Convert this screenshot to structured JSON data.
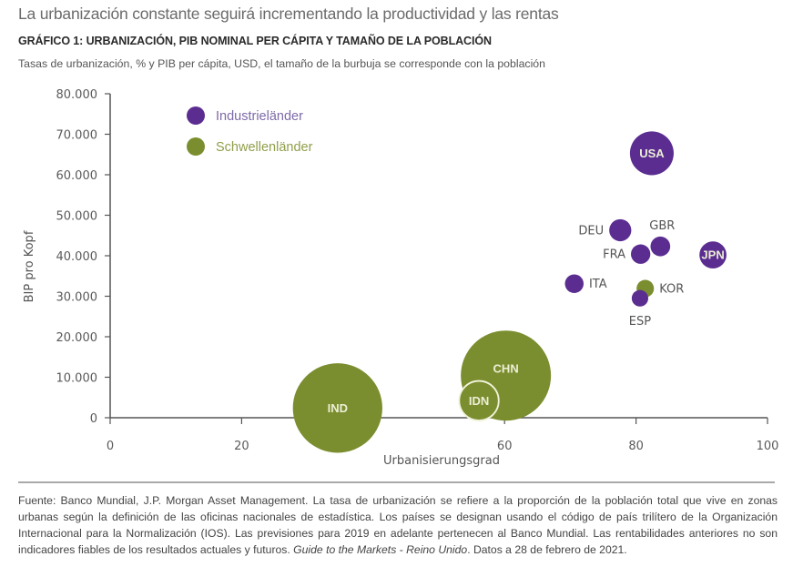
{
  "header": {
    "headline": "La urbanización constante seguirá incrementando la productividad y las rentas",
    "subhead": "GRÁFICO 1: URBANIZACIÓN, PIB NOMINAL PER CÁPITA Y TAMAÑO DE LA POBLACIÓN",
    "caption": "Tasas de urbanización, % y PIB per cápita, USD, el tamaño de la burbuja se corresponde con la población"
  },
  "colors": {
    "industrial": "#5b2d91",
    "emerging": "#7b8e2f",
    "industrial_legend_text": "#7d6aa8",
    "emerging_legend_text": "#8f9f4a",
    "bubble_text": "#ecefd6"
  },
  "chart_data": {
    "type": "scatter",
    "subtype": "bubble",
    "title": "",
    "xlabel": "Urbanisierungsgrad",
    "ylabel": "BIP pro Kopf",
    "xlim": [
      0,
      100
    ],
    "ylim": [
      0,
      80000
    ],
    "x_ticks": [
      0,
      20,
      40,
      60,
      80,
      100
    ],
    "x_tick_labels": [
      "0",
      "20",
      "",
      "60",
      "80",
      "100"
    ],
    "y_ticks": [
      0,
      10000,
      20000,
      30000,
      40000,
      50000,
      60000,
      70000,
      80000
    ],
    "y_tick_labels": [
      "0",
      "10.000",
      "20.000",
      "30.000",
      "40.000",
      "50.000",
      "60.000",
      "70.000",
      "80.000"
    ],
    "grid": false,
    "legend_position": "top-left",
    "legend": [
      {
        "name": "Industrieländer",
        "group": "industrial"
      },
      {
        "name": "Schwellenländer",
        "group": "emerging"
      }
    ],
    "size_variable": "population (millions, approx.)",
    "points": [
      {
        "label": "USA",
        "group": "industrial",
        "x": 82.4,
        "y": 65300,
        "size": 330,
        "label_pos": "inside"
      },
      {
        "label": "DEU",
        "group": "industrial",
        "x": 77.6,
        "y": 46300,
        "size": 84,
        "label_pos": "left"
      },
      {
        "label": "GBR",
        "group": "industrial",
        "x": 83.7,
        "y": 42300,
        "size": 67,
        "label_pos": "top"
      },
      {
        "label": "FRA",
        "group": "industrial",
        "x": 80.7,
        "y": 40400,
        "size": 65,
        "label_pos": "left"
      },
      {
        "label": "JPN",
        "group": "industrial",
        "x": 91.7,
        "y": 40200,
        "size": 126,
        "label_pos": "inside"
      },
      {
        "label": "ITA",
        "group": "industrial",
        "x": 70.6,
        "y": 33100,
        "size": 60,
        "label_pos": "right"
      },
      {
        "label": "ESP",
        "group": "industrial",
        "x": 80.6,
        "y": 29500,
        "size": 47,
        "label_pos": "bottom"
      },
      {
        "label": "KOR",
        "group": "emerging",
        "x": 81.4,
        "y": 31900,
        "size": 52,
        "label_pos": "right"
      },
      {
        "label": "CHN",
        "group": "emerging",
        "x": 60.2,
        "y": 10400,
        "size": 1400,
        "label_pos": "inside-upper"
      },
      {
        "label": "IND",
        "group": "emerging",
        "x": 34.6,
        "y": 2400,
        "size": 1380,
        "label_pos": "inside"
      },
      {
        "label": "IDN",
        "group": "emerging",
        "x": 56.1,
        "y": 4200,
        "size": 270,
        "label_pos": "inside",
        "outlined": true
      }
    ]
  },
  "footnote": {
    "part1": "Fuente: Banco Mundial, J.P. Morgan Asset Management. La tasa de urbanización se refiere a la proporción de la población total que vive en zonas urbanas según la definición de las oficinas nacionales de estadística. Los países se designan usando el código de país trilítero de la Organización Internacional para la Normalización (IOS). Las previsiones para 2019 en adelante pertenecen al Banco Mundial. Las rentabilidades anteriores no son indicadores fiables de los resultados actuales y futuros. ",
    "italic": "Guide to the Markets - Reino Unido",
    "part2": ". Datos a 28 de febrero de 2021."
  }
}
